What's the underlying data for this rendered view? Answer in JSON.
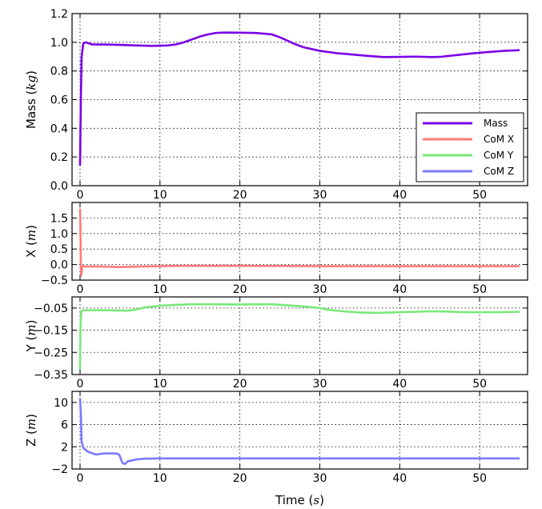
{
  "chart_data": [
    {
      "type": "line",
      "id": "mass",
      "ylabel": "Mass (kg)",
      "ylabel_main": "Mass (",
      "ylabel_unit": "kg",
      "ylabel_close": ")",
      "xlim": [
        -1,
        56
      ],
      "ylim": [
        0,
        1.2
      ],
      "xticks": [
        0,
        10,
        20,
        30,
        40,
        50
      ],
      "yticks": [
        0.0,
        0.2,
        0.4,
        0.6,
        0.8,
        1.0,
        1.2
      ],
      "ytick_labels": [
        "0.0",
        "0.2",
        "0.4",
        "0.6",
        "0.8",
        "1.0",
        "1.2"
      ],
      "grid": true,
      "legend": {
        "placement": "lower-right",
        "entries": [
          {
            "label": "Mass",
            "color": "#7b00e6"
          },
          {
            "label": "CoM X",
            "color": "#ff7a7a"
          },
          {
            "label": "CoM Y",
            "color": "#7ae87a"
          },
          {
            "label": "CoM Z",
            "color": "#7a7aff"
          }
        ]
      },
      "series": [
        {
          "name": "Mass",
          "color": "#7b00e6",
          "points": [
            [
              0,
              0.14
            ],
            [
              0.1,
              0.6
            ],
            [
              0.2,
              0.9
            ],
            [
              0.4,
              0.99
            ],
            [
              0.7,
              1.0
            ],
            [
              1.5,
              0.985
            ],
            [
              3,
              0.985
            ],
            [
              5,
              0.982
            ],
            [
              7,
              0.978
            ],
            [
              9,
              0.975
            ],
            [
              11,
              0.978
            ],
            [
              12,
              0.985
            ],
            [
              13,
              1.0
            ],
            [
              14,
              1.02
            ],
            [
              15,
              1.04
            ],
            [
              16,
              1.055
            ],
            [
              17,
              1.065
            ],
            [
              18,
              1.068
            ],
            [
              20,
              1.067
            ],
            [
              22,
              1.065
            ],
            [
              24,
              1.055
            ],
            [
              25,
              1.035
            ],
            [
              26,
              1.01
            ],
            [
              27,
              0.985
            ],
            [
              28,
              0.965
            ],
            [
              30,
              0.94
            ],
            [
              32,
              0.925
            ],
            [
              34,
              0.915
            ],
            [
              36,
              0.905
            ],
            [
              38,
              0.897
            ],
            [
              40,
              0.898
            ],
            [
              42,
              0.9
            ],
            [
              44,
              0.897
            ],
            [
              45,
              0.898
            ],
            [
              47,
              0.91
            ],
            [
              49,
              0.922
            ],
            [
              51,
              0.932
            ],
            [
              53,
              0.94
            ],
            [
              55,
              0.945
            ]
          ]
        }
      ]
    },
    {
      "type": "line",
      "id": "comx",
      "ylabel": "X (m)",
      "ylabel_main": "X (",
      "ylabel_unit": "m",
      "ylabel_close": ")",
      "xlim": [
        -1,
        56
      ],
      "ylim": [
        -0.5,
        2.0
      ],
      "xticks": [
        0,
        10,
        20,
        30,
        40,
        50
      ],
      "yticks": [
        -0.5,
        0.0,
        0.5,
        1.0,
        1.5
      ],
      "ytick_labels": [
        "−0.5",
        "0.0",
        "0.5",
        "1.0",
        "1.5"
      ],
      "grid": true,
      "series": [
        {
          "name": "CoM X",
          "color": "#ff7a7a",
          "points": [
            [
              0,
              1.8
            ],
            [
              0.05,
              1.2
            ],
            [
              0.12,
              -0.35
            ],
            [
              0.2,
              -0.25
            ],
            [
              0.3,
              -0.05
            ],
            [
              0.6,
              -0.06
            ],
            [
              2,
              -0.06
            ],
            [
              4,
              -0.07
            ],
            [
              5,
              -0.08
            ],
            [
              6,
              -0.07
            ],
            [
              8,
              -0.06
            ],
            [
              12,
              -0.04
            ],
            [
              20,
              -0.04
            ],
            [
              30,
              -0.05
            ],
            [
              40,
              -0.05
            ],
            [
              50,
              -0.05
            ],
            [
              55,
              -0.05
            ]
          ]
        }
      ]
    },
    {
      "type": "line",
      "id": "comy",
      "ylabel": "Y (m)",
      "ylabel_main": "Y (",
      "ylabel_unit": "m",
      "ylabel_close": ")",
      "xlim": [
        -1,
        56
      ],
      "ylim": [
        -0.35,
        0.0
      ],
      "xticks": [
        0,
        10,
        20,
        30,
        40,
        50
      ],
      "yticks": [
        -0.35,
        -0.25,
        -0.15,
        -0.05
      ],
      "ytick_labels": [
        "−0.35",
        "−0.25",
        "−0.15",
        "−0.05"
      ],
      "grid": true,
      "series": [
        {
          "name": "CoM Y",
          "color": "#7ae87a",
          "points": [
            [
              0,
              -0.33
            ],
            [
              0.05,
              -0.15
            ],
            [
              0.15,
              -0.065
            ],
            [
              0.4,
              -0.06
            ],
            [
              3,
              -0.06
            ],
            [
              6,
              -0.062
            ],
            [
              7,
              -0.057
            ],
            [
              8,
              -0.048
            ],
            [
              10,
              -0.04
            ],
            [
              12,
              -0.036
            ],
            [
              14,
              -0.033
            ],
            [
              20,
              -0.034
            ],
            [
              24,
              -0.033
            ],
            [
              26,
              -0.038
            ],
            [
              28,
              -0.043
            ],
            [
              30,
              -0.05
            ],
            [
              31,
              -0.058
            ],
            [
              33,
              -0.065
            ],
            [
              35,
              -0.07
            ],
            [
              37,
              -0.072
            ],
            [
              40,
              -0.069
            ],
            [
              44,
              -0.065
            ],
            [
              46,
              -0.066
            ],
            [
              48,
              -0.069
            ],
            [
              52,
              -0.069
            ],
            [
              55,
              -0.067
            ]
          ]
        }
      ]
    },
    {
      "type": "line",
      "id": "comz",
      "ylabel": "Z (m)",
      "ylabel_main": "Z (",
      "ylabel_unit": "m",
      "ylabel_close": ")",
      "xlabel": "Time (s)",
      "xlabel_main": "Time (",
      "xlabel_unit": "s",
      "xlabel_close": ")",
      "xlim": [
        -1,
        56
      ],
      "ylim": [
        -2,
        12
      ],
      "xticks": [
        0,
        10,
        20,
        30,
        40,
        50
      ],
      "yticks": [
        -2,
        2,
        6,
        10
      ],
      "ytick_labels": [
        "−2",
        "2",
        "6",
        "10"
      ],
      "grid": true,
      "series": [
        {
          "name": "CoM Z",
          "color": "#7a7aff",
          "points": [
            [
              0,
              10.8
            ],
            [
              0.1,
              8
            ],
            [
              0.2,
              3
            ],
            [
              0.4,
              1.8
            ],
            [
              1,
              1.1
            ],
            [
              2,
              0.6
            ],
            [
              3,
              0.8
            ],
            [
              4.5,
              0.8
            ],
            [
              4.9,
              0.6
            ],
            [
              5.3,
              -0.9
            ],
            [
              5.6,
              -1.1
            ],
            [
              6,
              -0.6
            ],
            [
              7,
              -0.3
            ],
            [
              8,
              -0.15
            ],
            [
              10,
              -0.1
            ],
            [
              20,
              -0.1
            ],
            [
              30,
              -0.1
            ],
            [
              40,
              -0.1
            ],
            [
              50,
              -0.1
            ],
            [
              55,
              -0.1
            ]
          ]
        }
      ]
    }
  ]
}
